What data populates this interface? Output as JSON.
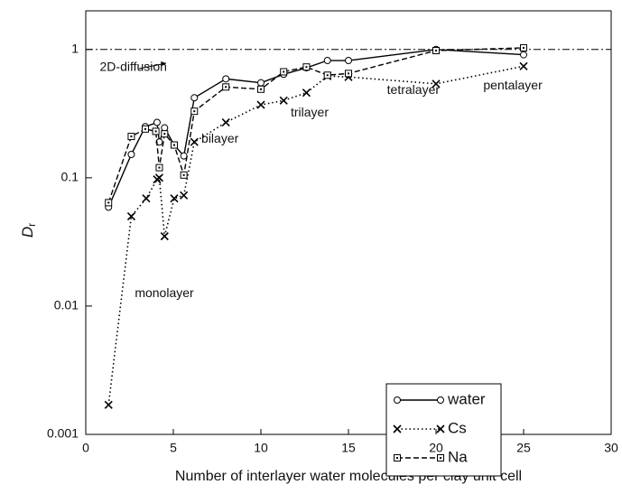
{
  "chart_data": {
    "type": "line",
    "xlabel": "Number of interlayer water molecules per clay unit cell",
    "ylabel": {
      "main": "D",
      "sub": "r"
    },
    "xlim": [
      0,
      30
    ],
    "xticks": [
      0,
      5,
      10,
      15,
      20,
      25,
      30
    ],
    "ylim": [
      0.001,
      2
    ],
    "yticks": [
      0.001,
      0.01,
      0.1,
      1
    ],
    "yscale": "log",
    "reference_line": 1,
    "legend": "lower right",
    "annotations": [
      {
        "text": "2D-diffusion",
        "x": 0.8,
        "y": 0.72
      },
      {
        "text": "monolayer",
        "x": 2.8,
        "y": 0.0125
      },
      {
        "text": "bilayer",
        "x": 6.6,
        "y": 0.2
      },
      {
        "text": "trilayer",
        "x": 11.7,
        "y": 0.32
      },
      {
        "text": "tetralayer",
        "x": 17.2,
        "y": 0.48
      },
      {
        "text": "pentalayer",
        "x": 22.7,
        "y": 0.52
      }
    ],
    "series": [
      {
        "name": "water",
        "color": "#000000",
        "linestyle": "solid",
        "marker": "circle",
        "x": [
          1.3,
          2.6,
          3.4,
          4.07,
          4.2,
          4.5,
          5.05,
          5.6,
          6.2,
          8.0,
          10.0,
          11.3,
          12.6,
          13.8,
          15.0,
          20.0,
          25.0
        ],
        "values": [
          0.059,
          0.152,
          0.25,
          0.27,
          0.19,
          0.245,
          0.18,
          0.148,
          0.42,
          0.59,
          0.55,
          0.64,
          0.72,
          0.82,
          0.82,
          1.0,
          0.91
        ]
      },
      {
        "name": "Cs",
        "color": "#000000",
        "linestyle": "dotted",
        "marker": "x",
        "x": [
          1.3,
          2.6,
          3.45,
          4.07,
          4.2,
          4.5,
          5.05,
          5.6,
          6.2,
          8.0,
          10.0,
          11.3,
          12.6,
          13.8,
          15.0,
          20.0,
          25.0
        ],
        "values": [
          0.0017,
          0.05,
          0.069,
          0.097,
          0.1,
          0.035,
          0.069,
          0.073,
          0.19,
          0.27,
          0.37,
          0.4,
          0.46,
          0.62,
          0.61,
          0.54,
          0.74
        ]
      },
      {
        "name": "Na",
        "color": "#000000",
        "linestyle": "dashed",
        "marker": "square",
        "x": [
          1.3,
          2.6,
          3.4,
          4.0,
          4.2,
          4.5,
          5.05,
          5.6,
          6.2,
          8.0,
          10.0,
          11.3,
          12.6,
          13.8,
          15.0,
          20.0,
          25.0
        ],
        "values": [
          0.064,
          0.21,
          0.24,
          0.23,
          0.12,
          0.22,
          0.18,
          0.105,
          0.33,
          0.51,
          0.49,
          0.67,
          0.73,
          0.63,
          0.65,
          0.98,
          1.03
        ]
      }
    ]
  }
}
